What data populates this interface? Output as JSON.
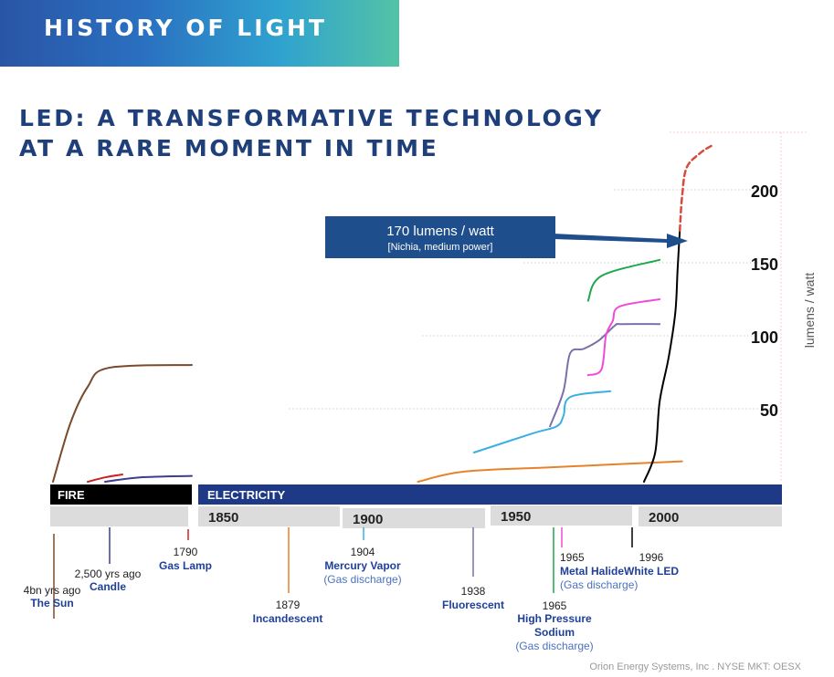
{
  "header": {
    "title": "HISTORY OF LIGHT"
  },
  "main_title": {
    "line1": "LED: A TRANSFORMATIVE TECHNOLOGY",
    "line2": "AT A RARE MOMENT IN TIME"
  },
  "footer": {
    "text": "Orion Energy Systems, Inc .   NYSE MKT: OESX"
  },
  "chart_data": {
    "type": "line",
    "ylabel": "lumens / watt",
    "y_ticks": [
      50,
      100,
      150,
      200
    ],
    "y_range": [
      0,
      230
    ],
    "callout": {
      "line1": "170 lumens / watt",
      "line2": "[Nichia, medium power]",
      "color": "#1f4e8c"
    },
    "eras": [
      {
        "label": "FIRE",
        "color": "#000000"
      },
      {
        "label": "ELECTRICITY",
        "color": "#1e3a87"
      }
    ],
    "timeline_labels": [
      "1850",
      "1900",
      "1950",
      "2000"
    ],
    "series": [
      {
        "name": "The Sun",
        "color": "#7a4a2a",
        "values": [
          [
            0,
            0
          ],
          [
            0.5,
            40
          ],
          [
            1,
            65
          ],
          [
            1.6,
            78
          ],
          [
            4,
            80
          ]
        ]
      },
      {
        "name": "Candle",
        "color": "#3d3d91",
        "values": [
          [
            1.5,
            0
          ],
          [
            2.5,
            3
          ],
          [
            4,
            4
          ]
        ]
      },
      {
        "name": "Gas Lamp",
        "color": "#cc2222",
        "values": [
          [
            1,
            0
          ],
          [
            1.5,
            3
          ],
          [
            2,
            5
          ]
        ]
      },
      {
        "name": "Incandescent",
        "color": "#e8812b",
        "values": [
          [
            1879,
            0
          ],
          [
            1900,
            7
          ],
          [
            1940,
            10
          ],
          [
            1997,
            14
          ]
        ]
      },
      {
        "name": "Mercury Vapor",
        "color": "#3ab0e2",
        "values": [
          [
            1904,
            20
          ],
          [
            1930,
            33
          ],
          [
            1941,
            38
          ],
          [
            1944,
            45
          ],
          [
            1947,
            58
          ],
          [
            1965,
            62
          ]
        ]
      },
      {
        "name": "Fluorescent",
        "color": "#7f6fa8",
        "values": [
          [
            1938,
            38
          ],
          [
            1944,
            62
          ],
          [
            1947,
            88
          ],
          [
            1953,
            91
          ],
          [
            1960,
            97
          ],
          [
            1967,
            107
          ],
          [
            1970,
            108
          ],
          [
            1987,
            108
          ]
        ]
      },
      {
        "name": "High Pressure Sodium",
        "color": "#1ea84e",
        "values": [
          [
            1955,
            124
          ],
          [
            1961,
            141
          ],
          [
            1987,
            152
          ]
        ]
      },
      {
        "name": "Metal Halide",
        "color": "#f04ad8",
        "values": [
          [
            1955,
            73
          ],
          [
            1961,
            77
          ],
          [
            1963,
            100
          ],
          [
            1966,
            110
          ],
          [
            1969,
            120
          ],
          [
            1987,
            125
          ]
        ]
      },
      {
        "name": "White LED",
        "color": "#000000",
        "values": [
          [
            1980,
            0
          ],
          [
            1985,
            20
          ],
          [
            1987,
            55
          ],
          [
            1991,
            85
          ],
          [
            1994,
            116
          ],
          [
            1995,
            145
          ],
          [
            1996,
            172
          ]
        ]
      },
      {
        "name": "White LED (projected)",
        "color": "#d64b3b",
        "dashed": true,
        "values": [
          [
            1996,
            172
          ],
          [
            1997,
            195
          ],
          [
            1999,
            215
          ],
          [
            2005,
            225
          ],
          [
            2010,
            230
          ]
        ]
      }
    ],
    "events": [
      {
        "year": "4bn yrs ago",
        "name": "The Sun",
        "color": "#7a4a2a"
      },
      {
        "year": "2,500 yrs ago",
        "name": "Candle",
        "color": "#3d3d91"
      },
      {
        "year": "1790",
        "name": "Gas Lamp",
        "color": "#cc2222"
      },
      {
        "year": "1879",
        "name": "Incandescent",
        "color": "#e8812b"
      },
      {
        "year": "1904",
        "name": "Mercury Vapor",
        "note": "(Gas discharge)",
        "color": "#3ab0e2"
      },
      {
        "year": "1938",
        "name": "Fluorescent",
        "color": "#7f6fa8"
      },
      {
        "year": "1965",
        "name": "Metal Halide",
        "note": "(Gas discharge)",
        "color": "#f04ad8"
      },
      {
        "year": "1965",
        "name": "High Pressure Sodium",
        "note": "(Gas discharge)",
        "color": "#1ea84e"
      },
      {
        "year": "1996",
        "name": "White LED",
        "color": "#000000"
      }
    ]
  }
}
